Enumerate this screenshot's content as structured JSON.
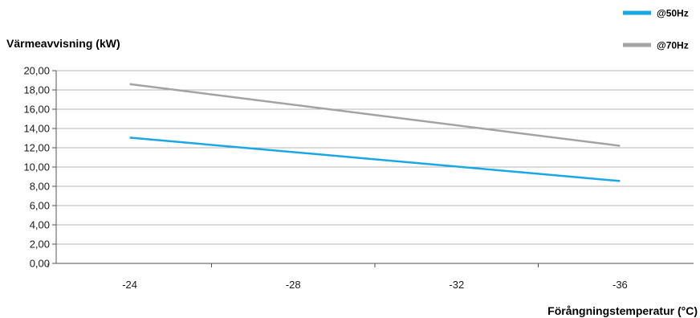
{
  "chart_data": {
    "type": "line",
    "xlabel": "Förångningstemperatur (°C)",
    "ylabel": "Värmeavvisning (kW)",
    "x": [
      -24,
      -36
    ],
    "x_ticks": [
      "-24",
      "-28",
      "-32",
      "-36"
    ],
    "y_ticks": [
      "20,00",
      "18,00",
      "16,00",
      "14,00",
      "12,00",
      "10,00",
      "8,00",
      "6,00",
      "4,00",
      "2,00",
      "0,00"
    ],
    "ylim": [
      0,
      20
    ],
    "xlim": [
      -22.2,
      -37.8
    ],
    "grid": true,
    "legend_position": "top-right",
    "series": [
      {
        "name": "@50Hz",
        "color": "#1aa7e3",
        "values": [
          13.05,
          8.55
        ]
      },
      {
        "name": "@70Hz",
        "color": "#a3a3a6",
        "values": [
          18.6,
          12.2
        ]
      }
    ]
  }
}
